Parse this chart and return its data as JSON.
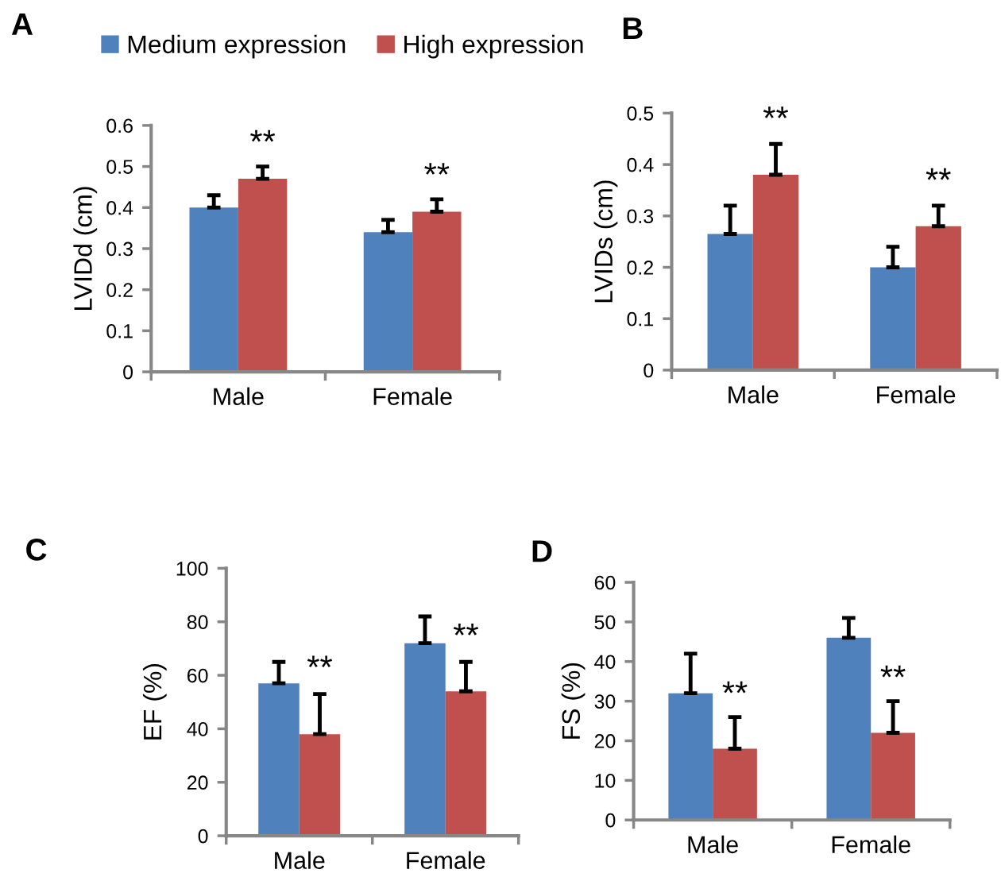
{
  "chart_data": [
    {
      "type": "bar",
      "title": "A",
      "ylabel": "LVIDd (cm)",
      "categories": [
        "Male",
        "Female"
      ],
      "ylim": [
        0,
        0.6
      ],
      "yticks": [
        {
          "value": 0,
          "label": "0"
        },
        0.1,
        0.2,
        0.3,
        0.4,
        0.5,
        0.6
      ],
      "legend": "top",
      "grid": false,
      "series": [
        {
          "name": "Medium expression",
          "color": "#4f81bd",
          "values": [
            0.4,
            0.34
          ],
          "errors": [
            [
              0.4,
              0.43
            ],
            [
              0.34,
              0.37
            ]
          ]
        },
        {
          "name": "High expression",
          "color": "#c0504d",
          "values": [
            0.47,
            0.39
          ],
          "errors": [
            [
              0.47,
              0.5
            ],
            [
              0.39,
              0.42
            ]
          ]
        }
      ],
      "annotations": [
        "**",
        "**"
      ]
    },
    {
      "type": "bar",
      "title": "B",
      "ylabel": "LVIDs (cm)",
      "categories": [
        "Male",
        "Female"
      ],
      "ylim": [
        0,
        0.5
      ],
      "yticks": [
        {
          "value": 0,
          "label": "0"
        },
        0.1,
        0.2,
        0.3,
        0.4,
        0.5
      ],
      "grid": false,
      "series": [
        {
          "color": "#4f81bd",
          "values": [
            0.265,
            0.2
          ],
          "errors": [
            [
              0.265,
              0.32
            ],
            [
              0.2,
              0.24
            ]
          ]
        },
        {
          "color": "#c0504d",
          "values": [
            0.38,
            0.28
          ],
          "errors": [
            [
              0.38,
              0.44
            ],
            [
              0.28,
              0.32
            ]
          ]
        }
      ],
      "annotations": [
        "**",
        "**"
      ]
    },
    {
      "type": "bar",
      "title": "C",
      "ylabel": "EF (%)",
      "categories": [
        "Male",
        "Female"
      ],
      "ylim": [
        0,
        100
      ],
      "yticks": [
        0,
        20,
        40,
        60,
        80,
        100
      ],
      "grid": false,
      "series": [
        {
          "color": "#4f81bd",
          "values": [
            57,
            72
          ],
          "errors": [
            [
              57,
              65
            ],
            [
              72,
              82
            ]
          ]
        },
        {
          "color": "#c0504d",
          "values": [
            38,
            54
          ],
          "errors": [
            [
              38,
              53
            ],
            [
              54,
              65
            ]
          ]
        }
      ],
      "annotations": [
        "**",
        "**"
      ]
    },
    {
      "type": "bar",
      "title": "D",
      "ylabel": "FS (%)",
      "categories": [
        "Male",
        "Female"
      ],
      "ylim": [
        0,
        60
      ],
      "yticks": [
        0,
        10,
        20,
        30,
        40,
        50,
        60
      ],
      "grid": false,
      "series": [
        {
          "color": "#4f81bd",
          "values": [
            32,
            46
          ],
          "errors": [
            [
              32,
              42
            ],
            [
              46,
              51
            ]
          ]
        },
        {
          "color": "#c0504d",
          "values": [
            18,
            22
          ],
          "errors": [
            [
              18,
              26
            ],
            [
              22,
              30
            ]
          ]
        }
      ],
      "annotations": [
        "**",
        "**"
      ]
    }
  ]
}
